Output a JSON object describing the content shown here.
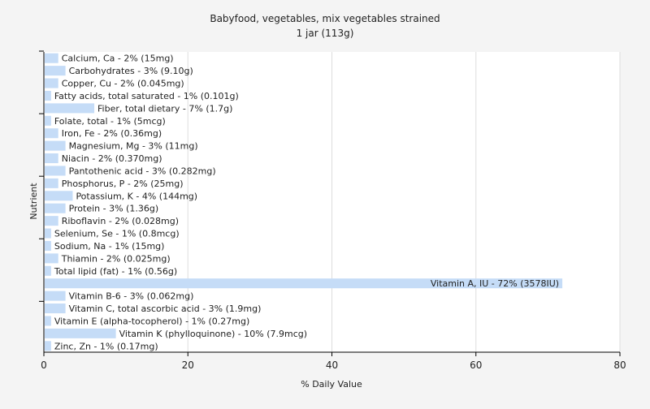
{
  "chart_data": {
    "type": "bar",
    "orientation": "horizontal",
    "title": "Babyfood, vegetables, mix vegetables strained",
    "subtitle": "1 jar (113g)",
    "xlabel": "% Daily Value",
    "ylabel": "Nutrient",
    "xlim": [
      0,
      80
    ],
    "xticks": [
      "0",
      "20",
      "40",
      "60",
      "80"
    ],
    "grid": true,
    "bar_color": "#c5dcf7",
    "categories": [
      "Calcium, Ca - 2% (15mg)",
      "Carbohydrates - 3% (9.10g)",
      "Copper, Cu - 2% (0.045mg)",
      "Fatty acids, total saturated - 1% (0.101g)",
      "Fiber, total dietary - 7% (1.7g)",
      "Folate, total - 1% (5mcg)",
      "Iron, Fe - 2% (0.36mg)",
      "Magnesium, Mg - 3% (11mg)",
      "Niacin - 2% (0.370mg)",
      "Pantothenic acid - 3% (0.282mg)",
      "Phosphorus, P - 2% (25mg)",
      "Potassium, K - 4% (144mg)",
      "Protein - 3% (1.36g)",
      "Riboflavin - 2% (0.028mg)",
      "Selenium, Se - 1% (0.8mcg)",
      "Sodium, Na - 1% (15mg)",
      "Thiamin - 2% (0.025mg)",
      "Total lipid (fat) - 1% (0.56g)",
      "Vitamin A, IU - 72% (3578IU)",
      "Vitamin B-6 - 3% (0.062mg)",
      "Vitamin C, total ascorbic acid - 3% (1.9mg)",
      "Vitamin E (alpha-tocopherol) - 1% (0.27mg)",
      "Vitamin K (phylloquinone) - 10% (7.9mcg)",
      "Zinc, Zn - 1% (0.17mg)"
    ],
    "values": [
      2,
      3,
      2,
      1,
      7,
      1,
      2,
      3,
      2,
      3,
      2,
      4,
      3,
      2,
      1,
      1,
      2,
      1,
      72,
      3,
      3,
      1,
      10,
      1
    ]
  }
}
